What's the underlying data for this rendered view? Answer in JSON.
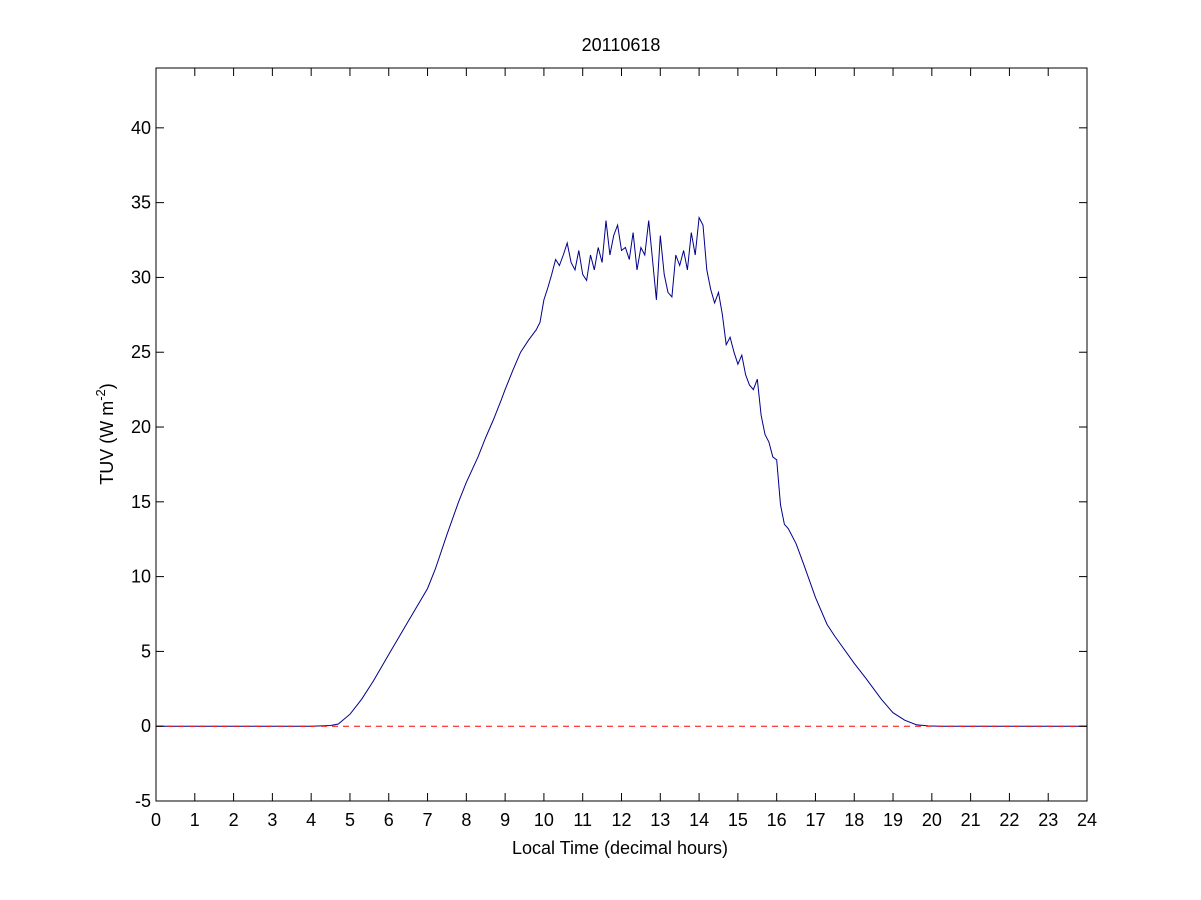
{
  "chart_data": {
    "type": "line",
    "title": "20110618",
    "xlabel": "Local Time (decimal hours)",
    "ylabel": {
      "main": "TUV (W m",
      "superscript": "-2",
      "suffix": ")"
    },
    "xlim": [
      0,
      24
    ],
    "ylim": [
      -5,
      44
    ],
    "xticks": [
      0,
      1,
      2,
      3,
      4,
      5,
      6,
      7,
      8,
      9,
      10,
      11,
      12,
      13,
      14,
      15,
      16,
      17,
      18,
      19,
      20,
      21,
      22,
      23,
      24
    ],
    "yticks": [
      -5,
      0,
      5,
      10,
      15,
      20,
      25,
      30,
      35,
      40
    ],
    "grid": false,
    "series": [
      {
        "color": "#00008b",
        "style": "solid",
        "x": [
          0,
          4.0,
          4.5,
          4.7,
          5.0,
          5.3,
          5.6,
          6.0,
          6.5,
          7.0,
          7.2,
          7.5,
          7.8,
          8.0,
          8.3,
          8.5,
          8.7,
          8.9,
          9.0,
          9.2,
          9.4,
          9.6,
          9.8,
          9.9,
          10.0,
          10.1,
          10.2,
          10.3,
          10.4,
          10.5,
          10.6,
          10.7,
          10.8,
          10.9,
          11.0,
          11.1,
          11.2,
          11.3,
          11.4,
          11.5,
          11.6,
          11.7,
          11.8,
          11.9,
          12.0,
          12.1,
          12.2,
          12.3,
          12.4,
          12.5,
          12.6,
          12.7,
          12.8,
          12.9,
          13.0,
          13.1,
          13.2,
          13.3,
          13.4,
          13.5,
          13.6,
          13.7,
          13.8,
          13.9,
          14.0,
          14.1,
          14.2,
          14.3,
          14.4,
          14.5,
          14.6,
          14.7,
          14.8,
          14.9,
          15.0,
          15.1,
          15.2,
          15.3,
          15.4,
          15.5,
          15.6,
          15.7,
          15.8,
          15.9,
          16.0,
          16.1,
          16.2,
          16.3,
          16.5,
          16.7,
          17.0,
          17.3,
          17.5,
          18.0,
          18.3,
          18.7,
          19.0,
          19.3,
          19.6,
          19.9,
          20.2,
          21.0,
          24.0
        ],
        "y": [
          0,
          0,
          0.05,
          0.15,
          0.8,
          1.8,
          3.0,
          4.8,
          7.0,
          9.2,
          10.5,
          12.8,
          15.0,
          16.3,
          18.0,
          19.3,
          20.5,
          21.8,
          22.5,
          23.8,
          25.0,
          25.8,
          26.5,
          27.0,
          28.5,
          29.3,
          30.2,
          31.2,
          30.8,
          31.5,
          32.3,
          31.0,
          30.5,
          31.8,
          30.2,
          29.8,
          31.5,
          30.5,
          32.0,
          31.0,
          33.8,
          31.5,
          32.8,
          33.5,
          31.8,
          32.0,
          31.2,
          33.0,
          30.5,
          32.0,
          31.5,
          33.8,
          31.2,
          28.5,
          32.8,
          30.2,
          29.0,
          28.7,
          31.5,
          30.8,
          31.8,
          30.5,
          33.0,
          31.5,
          34.0,
          33.5,
          30.5,
          29.2,
          28.3,
          29.0,
          27.5,
          25.5,
          26.0,
          25.0,
          24.2,
          24.8,
          23.5,
          22.8,
          22.5,
          23.2,
          20.8,
          19.5,
          19.0,
          18.0,
          17.8,
          14.8,
          13.5,
          13.2,
          12.2,
          10.8,
          8.6,
          6.8,
          6.0,
          4.2,
          3.2,
          1.8,
          0.9,
          0.4,
          0.1,
          0.02,
          0,
          0,
          0
        ]
      },
      {
        "color": "#ff0000",
        "style": "dashed",
        "x": [
          0,
          24
        ],
        "y": [
          0,
          0
        ]
      }
    ]
  }
}
